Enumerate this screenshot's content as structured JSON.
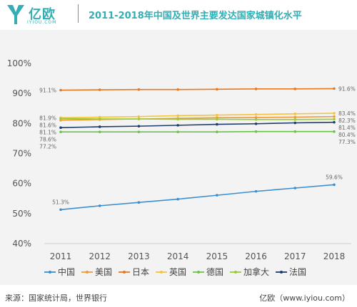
{
  "header": {
    "logo_text": "亿欧",
    "logo_sub": "IYIOU.COM",
    "title": "2011-2018年中国及世界主要发达国家城镇化水平"
  },
  "footer": {
    "source": "来源：国家统计局，世界银行",
    "brand": "亿欧（www.iyiou.com）"
  },
  "colors": {
    "brand": "#33aeb4",
    "panel_bg": "#f3f3f3"
  },
  "chart_data": {
    "type": "line",
    "title": "2011-2018年中国及世界主要发达国家城镇化水平",
    "x": [
      "2011",
      "2012",
      "2013",
      "2014",
      "2015",
      "2016",
      "2017",
      "2018"
    ],
    "ylim": [
      40,
      100
    ],
    "yticks": [
      "40%",
      "50%",
      "60%",
      "70%",
      "80%",
      "90%",
      "100%"
    ],
    "grid": false,
    "legend_position": "bottom",
    "series": [
      {
        "name": "中国",
        "color": "#3b8fd1",
        "values": [
          51.3,
          52.6,
          53.7,
          54.8,
          56.1,
          57.4,
          58.5,
          59.6
        ],
        "start_label": "51.3%",
        "end_label": "59.6%"
      },
      {
        "name": "美国",
        "color": "#f09a38",
        "values": [
          81.1,
          81.3,
          81.5,
          81.7,
          81.9,
          82.0,
          82.1,
          82.3
        ],
        "start_label": "81.1%",
        "end_label": "82.3%"
      },
      {
        "name": "日本",
        "color": "#e87722",
        "values": [
          91.1,
          91.2,
          91.3,
          91.3,
          91.4,
          91.5,
          91.5,
          91.6
        ],
        "start_label": "91.1%",
        "end_label": "91.6%"
      },
      {
        "name": "英国",
        "color": "#f5c242",
        "values": [
          81.9,
          82.1,
          82.3,
          82.6,
          82.8,
          83.0,
          83.2,
          83.4
        ],
        "start_label": "81.9%",
        "end_label": "83.4%"
      },
      {
        "name": "德国",
        "color": "#6cc24a",
        "values": [
          77.2,
          77.2,
          77.2,
          77.2,
          77.2,
          77.3,
          77.3,
          77.3
        ],
        "start_label": "77.2%",
        "end_label": "77.3%"
      },
      {
        "name": "加拿大",
        "color": "#9acd32",
        "values": [
          81.6,
          81.5,
          81.5,
          81.4,
          81.4,
          81.3,
          81.3,
          81.4
        ],
        "start_label": "81.6%",
        "end_label": "81.4%"
      },
      {
        "name": "法国",
        "color": "#1f3a6b",
        "values": [
          78.6,
          78.9,
          79.1,
          79.4,
          79.7,
          79.9,
          80.2,
          80.4
        ],
        "start_label": "78.6%",
        "end_label": "80.4%"
      }
    ]
  }
}
